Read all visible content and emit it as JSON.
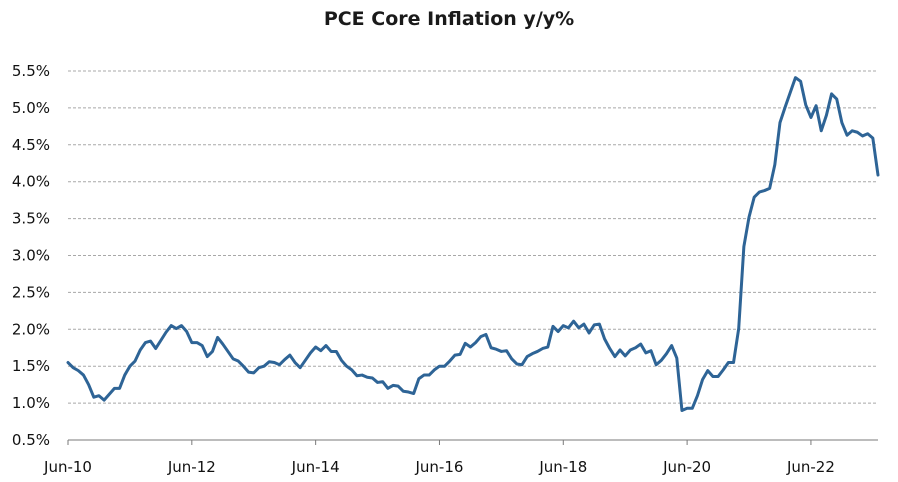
{
  "chart_data": {
    "type": "line",
    "title": "PCE Core Inflation y/y%",
    "xlabel": "",
    "ylabel": "",
    "ylim": [
      0.5,
      5.5
    ],
    "yticks": [
      "0.5%",
      "1.0%",
      "1.5%",
      "2.0%",
      "2.5%",
      "3.0%",
      "3.5%",
      "4.0%",
      "4.5%",
      "5.0%",
      "5.5%"
    ],
    "xticks": [
      "Jun-10",
      "Jun-12",
      "Jun-14",
      "Jun-16",
      "Jun-18",
      "Jun-20",
      "Jun-22"
    ],
    "grid": "horizontal dashed",
    "line_color": "#2e6496",
    "series": [
      {
        "x_start": "Jun-10",
        "frequency": "monthly",
        "values": [
          1.55,
          1.48,
          1.44,
          1.38,
          1.25,
          1.08,
          1.1,
          1.04,
          1.12,
          1.2,
          1.2,
          1.38,
          1.5,
          1.57,
          1.72,
          1.82,
          1.84,
          1.74,
          1.85,
          1.96,
          2.05,
          2.01,
          2.05,
          1.97,
          1.82,
          1.82,
          1.78,
          1.63,
          1.7,
          1.89,
          1.8,
          1.7,
          1.6,
          1.57,
          1.5,
          1.42,
          1.41,
          1.48,
          1.5,
          1.56,
          1.55,
          1.52,
          1.59,
          1.65,
          1.55,
          1.48,
          1.58,
          1.68,
          1.76,
          1.71,
          1.78,
          1.7,
          1.7,
          1.58,
          1.5,
          1.45,
          1.37,
          1.38,
          1.35,
          1.34,
          1.28,
          1.29,
          1.2,
          1.24,
          1.23,
          1.16,
          1.15,
          1.13,
          1.33,
          1.38,
          1.38,
          1.45,
          1.5,
          1.5,
          1.57,
          1.65,
          1.66,
          1.81,
          1.76,
          1.82,
          1.9,
          1.93,
          1.75,
          1.73,
          1.7,
          1.71,
          1.6,
          1.53,
          1.52,
          1.63,
          1.67,
          1.7,
          1.74,
          1.76,
          2.04,
          1.97,
          2.05,
          2.02,
          2.11,
          2.02,
          2.07,
          1.95,
          2.06,
          2.07,
          1.87,
          1.74,
          1.63,
          1.72,
          1.64,
          1.72,
          1.75,
          1.8,
          1.68,
          1.71,
          1.52,
          1.58,
          1.67,
          1.78,
          1.61,
          0.9,
          0.93,
          0.93,
          1.1,
          1.32,
          1.44,
          1.36,
          1.36,
          1.45,
          1.55,
          1.55,
          2.01,
          3.12,
          3.52,
          3.79,
          3.86,
          3.88,
          3.91,
          4.23,
          4.8,
          5.01,
          5.21,
          5.41,
          5.36,
          5.04,
          4.87,
          5.03,
          4.69,
          4.9,
          5.19,
          5.12,
          4.8,
          4.63,
          4.69,
          4.67,
          4.62,
          4.65,
          4.59,
          4.09
        ]
      }
    ]
  }
}
